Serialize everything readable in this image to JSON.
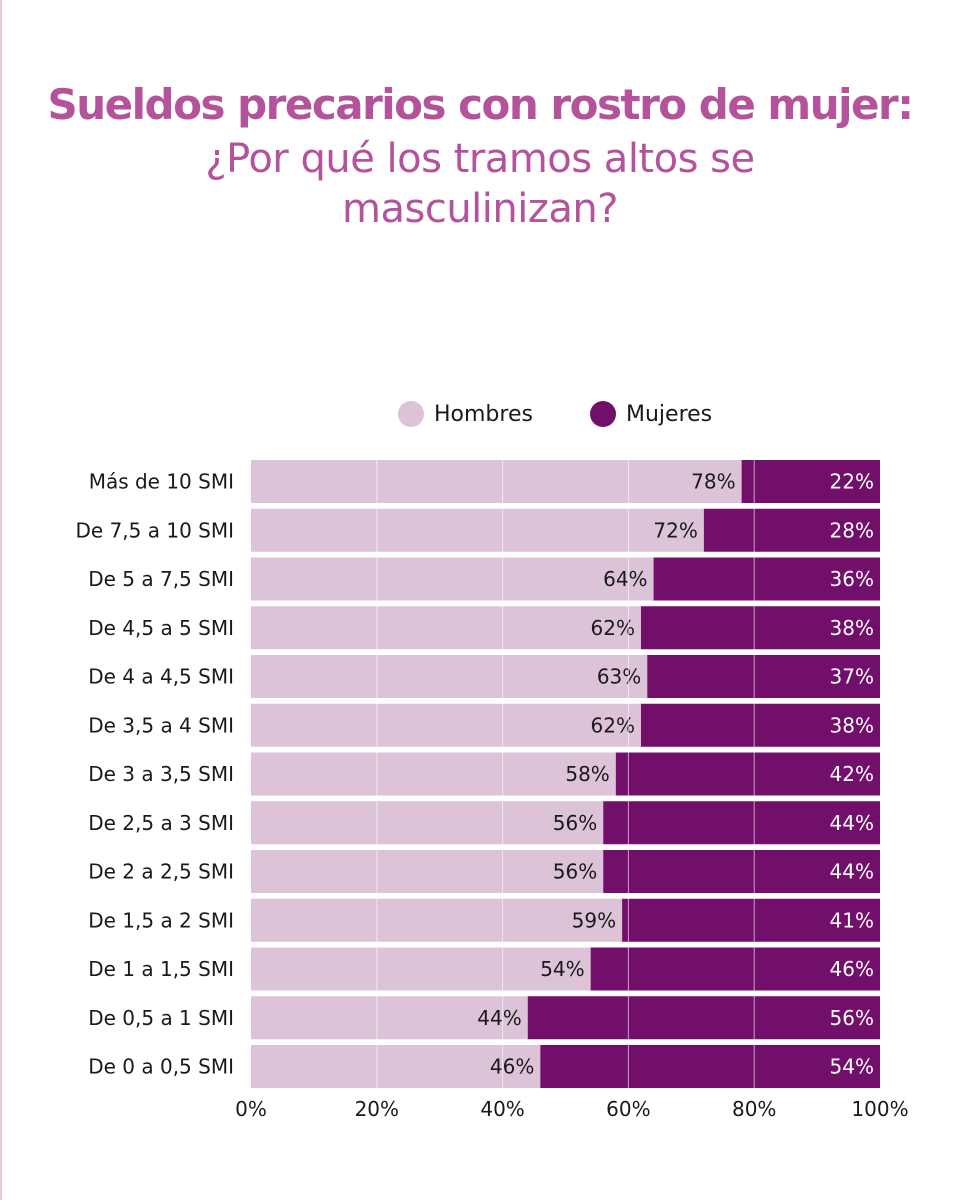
{
  "header": {
    "title": "Sueldos precarios con rostro de mujer:",
    "subtitle": "¿Por qué los tramos altos se masculinizan?"
  },
  "colors": {
    "title": "#b5529c",
    "hombres": "#dcc3d7",
    "mujeres": "#720f6b",
    "hombres_text": "#1a1a1a",
    "mujeres_text": "#ffffff",
    "grid": "#ffffff"
  },
  "chart_data": {
    "type": "bar",
    "orientation": "horizontal",
    "stacked": true,
    "percent": true,
    "categories": [
      "Más de 10 SMI",
      "De 7,5 a 10 SMI",
      "De 5 a 7,5 SMI",
      "De 4,5 a 5 SMI",
      "De 4 a 4,5 SMI",
      "De 3,5 a 4 SMI",
      "De 3 a 3,5 SMI",
      "De 2,5 a 3 SMI",
      "De 2 a 2,5 SMI",
      "De 1,5 a 2 SMI",
      "De 1 a 1,5 SMI",
      "De 0,5 a 1 SMI",
      "De 0 a 0,5 SMI"
    ],
    "series": [
      {
        "name": "Hombres",
        "values": [
          78,
          72,
          64,
          62,
          63,
          62,
          58,
          56,
          56,
          59,
          54,
          44,
          46
        ]
      },
      {
        "name": "Mujeres",
        "values": [
          22,
          28,
          36,
          38,
          37,
          38,
          42,
          44,
          44,
          41,
          46,
          56,
          54
        ]
      }
    ],
    "xlim": [
      0,
      100
    ],
    "xticks": [
      "0%",
      "20%",
      "40%",
      "60%",
      "80%",
      "100%"
    ],
    "legend_position": "top",
    "grid": true
  }
}
